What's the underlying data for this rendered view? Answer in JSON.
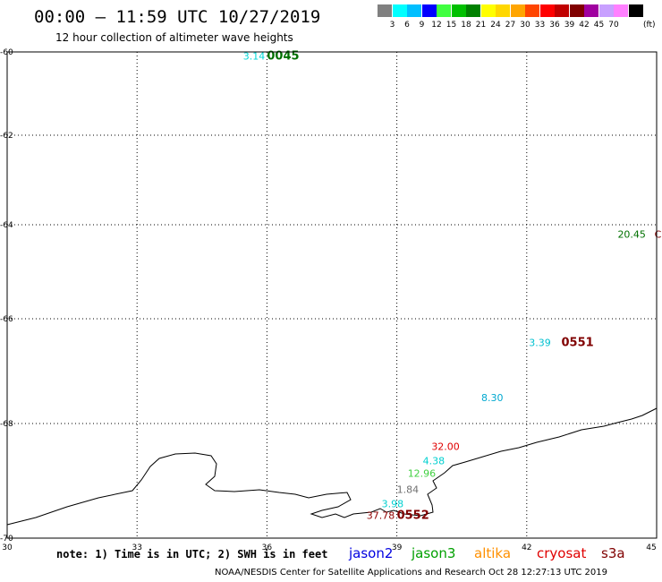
{
  "header": {
    "title": "00:00 – 11:59 UTC 10/27/2019",
    "subtitle": "12 hour collection of altimeter wave heights"
  },
  "legend": {
    "unit": "(ft)",
    "bins": [
      {
        "label": "",
        "color": "#808080"
      },
      {
        "label": "3",
        "color": "#00ffff"
      },
      {
        "label": "6",
        "color": "#00bfff"
      },
      {
        "label": "9",
        "color": "#0000ff"
      },
      {
        "label": "12",
        "color": "#40ff40"
      },
      {
        "label": "15",
        "color": "#00c000"
      },
      {
        "label": "18",
        "color": "#008000"
      },
      {
        "label": "21",
        "color": "#ffff00"
      },
      {
        "label": "24",
        "color": "#ffd700"
      },
      {
        "label": "27",
        "color": "#ffa500"
      },
      {
        "label": "30",
        "color": "#ff4500"
      },
      {
        "label": "33",
        "color": "#ff0000"
      },
      {
        "label": "36",
        "color": "#c00000"
      },
      {
        "label": "39",
        "color": "#800000"
      },
      {
        "label": "42",
        "color": "#a000a0"
      },
      {
        "label": "45",
        "color": "#c8a0ff"
      },
      {
        "label": "70",
        "color": "#ff80ff"
      },
      {
        "label": "",
        "color": "#000000"
      }
    ]
  },
  "map_data": {
    "lon_ticks": [
      "30",
      "33",
      "36",
      "39",
      "42",
      "45"
    ],
    "lat_ticks": [
      "-60",
      "-62",
      "-64",
      "-66",
      "-68",
      "-70"
    ],
    "observations": [
      {
        "text": "3.14",
        "color": "#00d8d8",
        "lon": 35.45,
        "lat": -60.1
      },
      {
        "text": "0045",
        "color": "#007000",
        "lon": 36.0,
        "lat": -60.1,
        "bold": true
      },
      {
        "text": "20.45",
        "color": "#007000",
        "lon": 44.1,
        "lat": -64.2
      },
      {
        "text": "C",
        "color": "#800000",
        "lon": 44.95,
        "lat": -64.2
      },
      {
        "text": "3.39",
        "color": "#00c0d0",
        "lon": 42.05,
        "lat": -66.45
      },
      {
        "text": "0551",
        "color": "#800000",
        "lon": 42.8,
        "lat": -66.45,
        "bold": true
      },
      {
        "text": "8.30",
        "color": "#00a8d0",
        "lon": 40.95,
        "lat": -67.5
      },
      {
        "text": "32.00",
        "color": "#e00000",
        "lon": 39.8,
        "lat": -68.4
      },
      {
        "text": "4.38",
        "color": "#00d0d0",
        "lon": 39.6,
        "lat": -68.65
      },
      {
        "text": "12.96",
        "color": "#40d040",
        "lon": 39.25,
        "lat": -68.87
      },
      {
        "text": "1.84",
        "color": "#707070",
        "lon": 39.0,
        "lat": -69.15
      },
      {
        "text": "3.98",
        "color": "#00d0d0",
        "lon": 38.65,
        "lat": -69.4
      },
      {
        "text": "37.78",
        "color": "#900000",
        "lon": 38.3,
        "lat": -69.6
      },
      {
        "text": "0552",
        "color": "#800000",
        "lon": 39.0,
        "lat": -69.6,
        "bold": true
      }
    ]
  },
  "footer": {
    "note": "note: 1) Time is in UTC; 2) SWH is in feet",
    "satellites": [
      {
        "name": "jason2",
        "color": "#0000e0"
      },
      {
        "name": "jason3",
        "color": "#00a000"
      },
      {
        "name": "altika",
        "color": "#ff9000"
      },
      {
        "name": "cryosat",
        "color": "#e00000"
      },
      {
        "name": "s3a",
        "color": "#800000"
      }
    ],
    "credit": "NOAA/NESDIS Center for Satellite Applications and Research    Oct 28 12:27:13 UTC 2019"
  }
}
